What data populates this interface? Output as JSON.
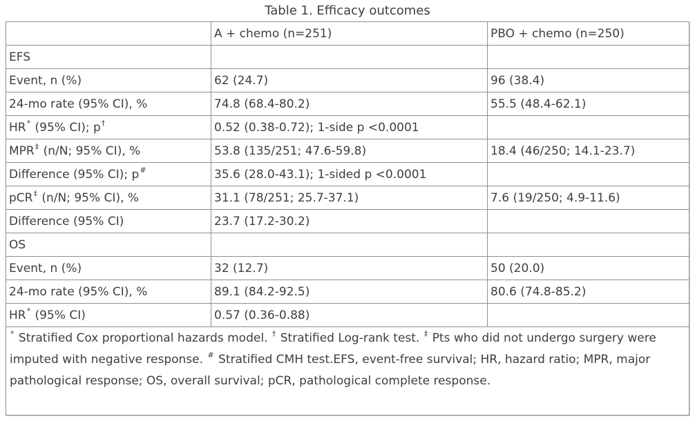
{
  "title": "Table 1. Efficacy outcomes",
  "colors": {
    "border": "#8f8f8f",
    "text": "#3e3e3e",
    "background": "#ffffff"
  },
  "table": {
    "columns": [
      "",
      "A + chemo (n=251)",
      "PBO + chemo (n=250)"
    ],
    "rows": [
      {
        "type": "section",
        "cells": [
          "EFS",
          "",
          ""
        ]
      },
      {
        "type": "data",
        "cells": [
          "Event, n (%)",
          "62 (24.7)",
          "96 (38.4)"
        ]
      },
      {
        "type": "data",
        "cells": [
          "24-mo rate (95% CI), %",
          "74.8 (68.4-80.2)",
          "55.5 (48.4-62.1)"
        ]
      },
      {
        "type": "data",
        "cells": [
          "HR^*^ (95% CI); p^†^",
          "0.52 (0.38-0.72); 1-side p <0.0001",
          ""
        ]
      },
      {
        "type": "data",
        "cells": [
          "MPR^‡^ (n/N; 95% CI), %",
          "53.8 (135/251; 47.6-59.8)",
          "18.4 (46/250; 14.1-23.7)"
        ]
      },
      {
        "type": "data",
        "cells": [
          "Difference (95% CI); p^#^",
          "35.6 (28.0-43.1); 1-sided p <0.0001",
          ""
        ]
      },
      {
        "type": "data",
        "cells": [
          "pCR^‡^ (n/N; 95% CI), %",
          "31.1 (78/251; 25.7-37.1)",
          "7.6 (19/250; 4.9-11.6)"
        ]
      },
      {
        "type": "data",
        "cells": [
          "Difference (95% CI)",
          "23.7 (17.2-30.2)",
          ""
        ]
      },
      {
        "type": "section",
        "cells": [
          "OS",
          "",
          ""
        ]
      },
      {
        "type": "data",
        "cells": [
          "Event, n (%)",
          "32 (12.7)",
          "50 (20.0)"
        ]
      },
      {
        "type": "data",
        "cells": [
          "24-mo rate (95% CI), %",
          "89.1 (84.2-92.5)",
          "80.6 (74.8-85.2)"
        ]
      },
      {
        "type": "data",
        "cells": [
          "HR^*^ (95% CI)",
          "0.57 (0.36-0.88)",
          ""
        ]
      }
    ],
    "footnote": "^*^ Stratified Cox proportional hazards model. ^†^ Stratified Log-rank test. ^‡^ Pts who did not undergo surgery were imputed with negative response. ^#^ Stratified CMH test.EFS, event-free survival; HR, hazard ratio; MPR, major pathological response; OS, overall survival; pCR, pathological complete response."
  }
}
